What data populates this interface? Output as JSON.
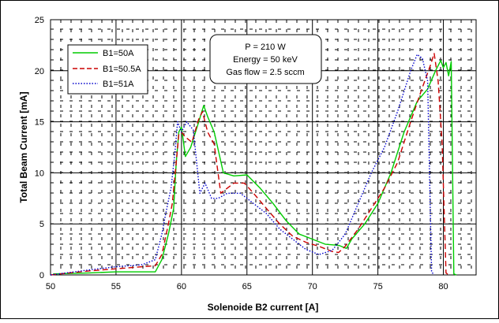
{
  "chart_data": {
    "type": "line",
    "xlabel": "Solenoide B2 current [A]",
    "ylabel": "Total Beam Current [mA]",
    "xlim": [
      50,
      82.5
    ],
    "ylim": [
      0,
      25
    ],
    "x_ticks": [
      "50",
      "55",
      "60",
      "65",
      "70",
      "75",
      "80"
    ],
    "y_ticks": [
      "0",
      "5",
      "10",
      "15",
      "20",
      "25"
    ],
    "grid": "dashed minor grid, solid major gridlines",
    "legend_position": "top-left",
    "annotation": [
      "P = 210 W",
      "Energy = 50 keV",
      "Gas flow = 2.5 sccm"
    ],
    "series": [
      {
        "name": "B1=50A",
        "color": "#00cc00",
        "dash": "solid",
        "points": [
          [
            50.2,
            0.1
          ],
          [
            53,
            0.2
          ],
          [
            55,
            0.3
          ],
          [
            57,
            0.3
          ],
          [
            58.0,
            0.3
          ],
          [
            58.5,
            1.5
          ],
          [
            59,
            4
          ],
          [
            59.4,
            6.5
          ],
          [
            59.6,
            11
          ],
          [
            59.8,
            14
          ],
          [
            60.0,
            14.5
          ],
          [
            60.3,
            11.6
          ],
          [
            60.7,
            12.5
          ],
          [
            61.2,
            14.5
          ],
          [
            61.7,
            16.6
          ],
          [
            62,
            15.5
          ],
          [
            62.5,
            14
          ],
          [
            63.2,
            10
          ],
          [
            64,
            9.7
          ],
          [
            65,
            9.8
          ],
          [
            66,
            8.5
          ],
          [
            67,
            7
          ],
          [
            68,
            5.3
          ],
          [
            69,
            4
          ],
          [
            70,
            3.5
          ],
          [
            71,
            3
          ],
          [
            72,
            2.9
          ],
          [
            72.6,
            2.6
          ],
          [
            73,
            3.5
          ],
          [
            74,
            5
          ],
          [
            75,
            7
          ],
          [
            76,
            10
          ],
          [
            77,
            14
          ],
          [
            78,
            17
          ],
          [
            78.8,
            18.2
          ],
          [
            79.4,
            20
          ],
          [
            79.8,
            21
          ],
          [
            80.0,
            20.3
          ],
          [
            80.2,
            20.8
          ],
          [
            80.4,
            19.5
          ],
          [
            80.6,
            20.9
          ],
          [
            80.8,
            0.1
          ],
          [
            81,
            0
          ]
        ]
      },
      {
        "name": "B1=50.5A",
        "color": "#cc0000",
        "dash": "dashed",
        "points": [
          [
            50,
            0
          ],
          [
            53,
            0.4
          ],
          [
            55,
            0.6
          ],
          [
            57,
            0.8
          ],
          [
            58,
            0.9
          ],
          [
            58.5,
            2
          ],
          [
            59,
            5
          ],
          [
            59.3,
            7
          ],
          [
            59.6,
            11
          ],
          [
            59.8,
            13.8
          ],
          [
            60,
            14
          ],
          [
            60.3,
            13.5
          ],
          [
            60.8,
            13
          ],
          [
            61.3,
            15.2
          ],
          [
            61.6,
            16
          ],
          [
            62,
            14
          ],
          [
            62.5,
            12.8
          ],
          [
            63,
            8
          ],
          [
            64,
            9
          ],
          [
            64.8,
            9
          ],
          [
            65.5,
            8
          ],
          [
            66.5,
            6.5
          ],
          [
            67.5,
            5
          ],
          [
            68.5,
            3.8
          ],
          [
            69.5,
            3.2
          ],
          [
            70.5,
            2.8
          ],
          [
            71.5,
            2.3
          ],
          [
            72,
            2.2
          ],
          [
            72.5,
            2.8
          ],
          [
            73.5,
            4.5
          ],
          [
            74.5,
            6.5
          ],
          [
            75.5,
            8.5
          ],
          [
            76.5,
            11
          ],
          [
            77.5,
            15
          ],
          [
            78.3,
            18
          ],
          [
            79,
            20.5
          ],
          [
            79.3,
            21.7
          ],
          [
            79.6,
            19
          ],
          [
            79.9,
            13
          ],
          [
            80.2,
            0.2
          ],
          [
            80.4,
            0
          ]
        ]
      },
      {
        "name": "B1=51A",
        "color": "#0000cc",
        "dash": "dotted",
        "points": [
          [
            50,
            0
          ],
          [
            53,
            0.5
          ],
          [
            55,
            0.8
          ],
          [
            57,
            1
          ],
          [
            58,
            1.5
          ],
          [
            58.5,
            4
          ],
          [
            58.8,
            6
          ],
          [
            59.2,
            8.5
          ],
          [
            59.5,
            12
          ],
          [
            59.7,
            15
          ],
          [
            60.0,
            14
          ],
          [
            60.4,
            15
          ],
          [
            60.9,
            14.2
          ],
          [
            61.4,
            8
          ],
          [
            61.8,
            9
          ],
          [
            62.3,
            7.5
          ],
          [
            62.8,
            7.5
          ],
          [
            63.5,
            8
          ],
          [
            64.5,
            8
          ],
          [
            65.5,
            7
          ],
          [
            66.5,
            6
          ],
          [
            67.5,
            4.5
          ],
          [
            68.5,
            3.5
          ],
          [
            69.5,
            2.5
          ],
          [
            70.5,
            2
          ],
          [
            71.5,
            2.4
          ],
          [
            72.5,
            4
          ],
          [
            73.5,
            7
          ],
          [
            74.5,
            10
          ],
          [
            75.5,
            12.5
          ],
          [
            76.5,
            16
          ],
          [
            77.5,
            20
          ],
          [
            78,
            21.6
          ],
          [
            78.4,
            21.2
          ],
          [
            78.8,
            19
          ],
          [
            79.1,
            0.3
          ],
          [
            79.3,
            0
          ]
        ]
      }
    ]
  }
}
